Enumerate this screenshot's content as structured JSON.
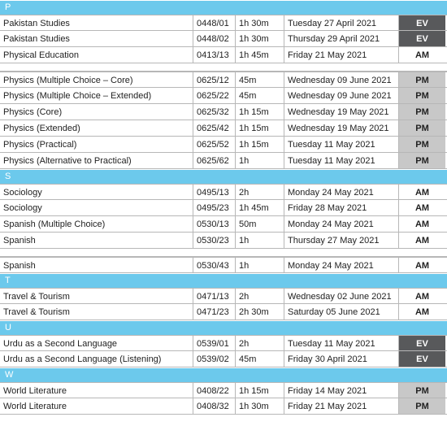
{
  "sections": [
    {
      "letter": "P",
      "groups": [
        [
          {
            "subject": "Pakistan Studies",
            "code": "0448/01",
            "duration": "1h 30m",
            "date": "Tuesday 27 April 2021",
            "session": "EV"
          },
          {
            "subject": "Pakistan Studies",
            "code": "0448/02",
            "duration": "1h 30m",
            "date": "Thursday 29 April 2021",
            "session": "EV"
          },
          {
            "subject": "Physical Education",
            "code": "0413/13",
            "duration": "1h 45m",
            "date": "Friday 21 May 2021",
            "session": "AM"
          }
        ],
        [
          {
            "subject": "Physics (Multiple Choice – Core)",
            "code": "0625/12",
            "duration": "45m",
            "date": "Wednesday 09 June 2021",
            "session": "PM"
          },
          {
            "subject": "Physics (Multiple Choice – Extended)",
            "code": "0625/22",
            "duration": "45m",
            "date": "Wednesday 09 June 2021",
            "session": "PM"
          },
          {
            "subject": "Physics (Core)",
            "code": "0625/32",
            "duration": "1h 15m",
            "date": "Wednesday 19 May 2021",
            "session": "PM"
          },
          {
            "subject": "Physics (Extended)",
            "code": "0625/42",
            "duration": "1h 15m",
            "date": "Wednesday 19 May 2021",
            "session": "PM"
          },
          {
            "subject": "Physics (Practical)",
            "code": "0625/52",
            "duration": "1h 15m",
            "date": "Tuesday 11 May 2021",
            "session": "PM"
          },
          {
            "subject": "Physics (Alternative to Practical)",
            "code": "0625/62",
            "duration": "1h",
            "date": "Tuesday 11 May 2021",
            "session": "PM"
          }
        ]
      ]
    },
    {
      "letter": "S",
      "groups": [
        [
          {
            "subject": "Sociology",
            "code": "0495/13",
            "duration": "2h",
            "date": "Monday 24 May 2021",
            "session": "AM"
          },
          {
            "subject": "Sociology",
            "code": "0495/23",
            "duration": "1h 45m",
            "date": "Friday 28 May 2021",
            "session": "AM"
          },
          {
            "subject": "Spanish (Multiple Choice)",
            "code": "0530/13",
            "duration": "50m",
            "date": "Monday 24 May 2021",
            "session": "AM"
          },
          {
            "subject": "Spanish",
            "code": "0530/23",
            "duration": "1h",
            "date": "Thursday 27 May 2021",
            "session": "AM"
          }
        ],
        [
          {
            "subject": "Spanish",
            "code": "0530/43",
            "duration": "1h",
            "date": "Monday 24 May 2021",
            "session": "AM"
          }
        ]
      ]
    },
    {
      "letter": "T",
      "groups": [
        [
          {
            "subject": "Travel & Tourism",
            "code": "0471/13",
            "duration": "2h",
            "date": "Wednesday 02 June 2021",
            "session": "AM"
          },
          {
            "subject": "Travel & Tourism",
            "code": "0471/23",
            "duration": "2h 30m",
            "date": "Saturday 05 June 2021",
            "session": "AM"
          }
        ]
      ]
    },
    {
      "letter": "U",
      "groups": [
        [
          {
            "subject": "Urdu as a Second Language",
            "code": "0539/01",
            "duration": "2h",
            "date": "Tuesday 11 May 2021",
            "session": "EV"
          },
          {
            "subject": "Urdu as a Second Language (Listening)",
            "code": "0539/02",
            "duration": "45m",
            "date": "Friday 30 April 2021",
            "session": "EV"
          }
        ]
      ]
    },
    {
      "letter": "W",
      "groups": [
        [
          {
            "subject": "World Literature",
            "code": "0408/22",
            "duration": "1h 15m",
            "date": "Friday 14 May 2021",
            "session": "PM"
          },
          {
            "subject": "World Literature",
            "code": "0408/32",
            "duration": "1h 30m",
            "date": "Friday 21 May 2021",
            "session": "PM"
          }
        ]
      ]
    }
  ]
}
